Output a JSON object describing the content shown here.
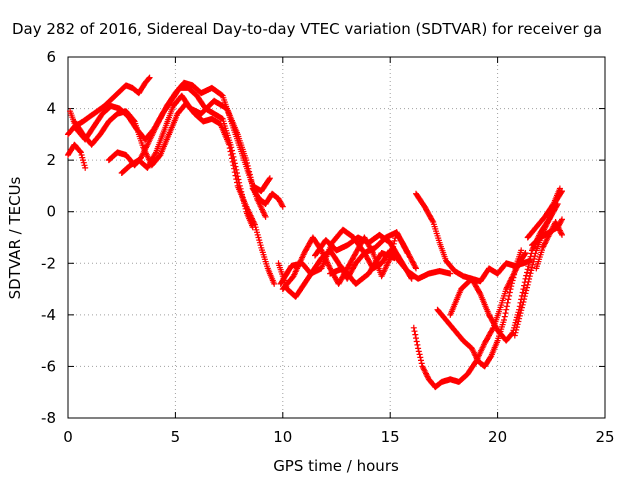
{
  "chart_data": {
    "type": "scatter",
    "title": "Day 282 of 2016, Sidereal Day-to-day VTEC variation (SDTVAR) for receiver ga",
    "xlabel": "GPS time / hours",
    "ylabel": "SDTVAR / TECUs",
    "xlim": [
      0,
      25
    ],
    "ylim": [
      -8,
      6
    ],
    "xticks": [
      0,
      5,
      10,
      15,
      20,
      25
    ],
    "yticks": [
      -8,
      -6,
      -4,
      -2,
      0,
      2,
      4,
      6
    ],
    "grid": true,
    "marker": "+",
    "color": "#ff0000",
    "traces": [
      [
        [
          0.0,
          3.0
        ],
        [
          0.3,
          3.3
        ],
        [
          0.7,
          3.5
        ],
        [
          1.2,
          3.8
        ],
        [
          1.7,
          4.1
        ],
        [
          2.2,
          4.5
        ],
        [
          2.7,
          4.9
        ],
        [
          3.0,
          4.8
        ],
        [
          3.3,
          4.6
        ],
        [
          3.6,
          5.0
        ],
        [
          3.8,
          5.2
        ]
      ],
      [
        [
          0.0,
          2.2
        ],
        [
          0.3,
          2.6
        ],
        [
          0.6,
          2.3
        ],
        [
          0.8,
          1.7
        ]
      ],
      [
        [
          0.1,
          3.9
        ],
        [
          0.4,
          3.2
        ],
        [
          0.8,
          2.8
        ],
        [
          1.2,
          3.3
        ],
        [
          1.6,
          3.8
        ],
        [
          2.0,
          4.1
        ],
        [
          2.4,
          4.0
        ],
        [
          2.8,
          3.7
        ],
        [
          3.2,
          3.2
        ],
        [
          3.6,
          2.8
        ],
        [
          4.0,
          3.2
        ],
        [
          4.4,
          3.8
        ],
        [
          4.8,
          4.3
        ],
        [
          5.2,
          4.8
        ],
        [
          5.6,
          4.8
        ],
        [
          6.0,
          4.5
        ],
        [
          6.4,
          4.0
        ],
        [
          6.8,
          3.8
        ],
        [
          7.2,
          3.6
        ],
        [
          7.6,
          2.5
        ],
        [
          8.0,
          1.0
        ],
        [
          8.3,
          0.0
        ],
        [
          8.6,
          -0.6
        ]
      ],
      [
        [
          0.3,
          3.5
        ],
        [
          0.7,
          3.0
        ],
        [
          1.1,
          2.6
        ],
        [
          1.5,
          3.0
        ],
        [
          1.9,
          3.5
        ],
        [
          2.3,
          3.8
        ],
        [
          2.7,
          3.9
        ],
        [
          3.1,
          3.5
        ],
        [
          3.5,
          2.5
        ],
        [
          3.9,
          1.8
        ],
        [
          4.3,
          2.2
        ],
        [
          4.7,
          3.0
        ],
        [
          5.1,
          3.8
        ],
        [
          5.5,
          4.2
        ],
        [
          5.9,
          3.8
        ],
        [
          6.3,
          3.5
        ],
        [
          6.7,
          3.6
        ],
        [
          7.1,
          3.4
        ],
        [
          7.5,
          2.6
        ],
        [
          7.9,
          1.0
        ],
        [
          8.3,
          0.2
        ],
        [
          8.7,
          -0.5
        ],
        [
          9.0,
          -1.4
        ],
        [
          9.3,
          -2.2
        ],
        [
          9.6,
          -2.8
        ]
      ],
      [
        [
          1.9,
          2.0
        ],
        [
          2.3,
          2.3
        ],
        [
          2.7,
          2.2
        ],
        [
          3.1,
          1.8
        ],
        [
          3.4,
          2.1
        ],
        [
          3.7,
          2.6
        ],
        [
          4.1,
          3.3
        ],
        [
          4.6,
          4.1
        ],
        [
          5.0,
          4.6
        ],
        [
          5.4,
          5.0
        ],
        [
          5.8,
          4.9
        ],
        [
          6.2,
          4.6
        ],
        [
          6.7,
          4.8
        ],
        [
          7.2,
          4.5
        ],
        [
          7.6,
          3.5
        ],
        [
          8.0,
          2.5
        ],
        [
          8.4,
          1.5
        ],
        [
          8.8,
          0.5
        ],
        [
          9.2,
          -0.2
        ]
      ],
      [
        [
          2.5,
          1.5
        ],
        [
          2.9,
          1.8
        ],
        [
          3.3,
          2.0
        ],
        [
          3.7,
          1.7
        ],
        [
          4.1,
          2.3
        ],
        [
          4.5,
          3.2
        ],
        [
          4.9,
          4.1
        ],
        [
          5.3,
          4.5
        ],
        [
          5.7,
          4.0
        ],
        [
          6.2,
          3.8
        ],
        [
          6.8,
          4.3
        ],
        [
          7.4,
          4.0
        ],
        [
          7.9,
          3.0
        ],
        [
          8.3,
          2.0
        ],
        [
          8.6,
          1.0
        ],
        [
          9.0,
          0.8
        ],
        [
          9.4,
          1.3
        ]
      ],
      [
        [
          8.6,
          0.9
        ],
        [
          8.9,
          0.5
        ],
        [
          9.2,
          0.3
        ],
        [
          9.5,
          0.7
        ],
        [
          9.8,
          0.5
        ],
        [
          10.0,
          0.2
        ]
      ],
      [
        [
          9.8,
          -2.0
        ],
        [
          10.2,
          -3.0
        ],
        [
          10.6,
          -3.3
        ],
        [
          11.0,
          -2.8
        ],
        [
          11.4,
          -2.3
        ],
        [
          11.8,
          -1.8
        ],
        [
          12.2,
          -1.5
        ],
        [
          12.6,
          -2.0
        ],
        [
          13.0,
          -2.6
        ],
        [
          13.4,
          -2.0
        ],
        [
          13.8,
          -1.6
        ],
        [
          14.2,
          -2.2
        ],
        [
          14.6,
          -2.0
        ],
        [
          15.0,
          -1.5
        ],
        [
          15.4,
          -1.9
        ],
        [
          15.8,
          -2.3
        ],
        [
          16.3,
          -2.6
        ],
        [
          16.8,
          -2.4
        ],
        [
          17.3,
          -2.3
        ],
        [
          17.8,
          -2.4
        ]
      ],
      [
        [
          10.0,
          -3.0
        ],
        [
          10.5,
          -2.5
        ],
        [
          11.0,
          -1.6
        ],
        [
          11.4,
          -1.0
        ],
        [
          11.8,
          -1.5
        ],
        [
          12.2,
          -2.2
        ],
        [
          12.6,
          -2.8
        ],
        [
          13.0,
          -2.2
        ],
        [
          13.4,
          -1.6
        ],
        [
          13.8,
          -1.0
        ],
        [
          14.2,
          -1.6
        ],
        [
          14.6,
          -2.5
        ],
        [
          15.0,
          -1.8
        ],
        [
          15.3,
          -0.8
        ],
        [
          15.7,
          -1.4
        ],
        [
          16.2,
          -2.2
        ]
      ],
      [
        [
          9.9,
          -2.8
        ],
        [
          10.4,
          -2.1
        ],
        [
          10.9,
          -2.0
        ],
        [
          11.3,
          -2.4
        ],
        [
          11.8,
          -2.2
        ],
        [
          12.3,
          -1.2
        ],
        [
          12.8,
          -0.7
        ],
        [
          13.3,
          -1.0
        ],
        [
          13.8,
          -1.6
        ],
        [
          14.3,
          -1.4
        ],
        [
          14.8,
          -1.0
        ],
        [
          15.3,
          -0.8
        ],
        [
          15.8,
          -1.6
        ]
      ],
      [
        [
          11.5,
          -1.7
        ],
        [
          12.0,
          -1.1
        ],
        [
          12.5,
          -1.5
        ],
        [
          13.0,
          -1.3
        ],
        [
          13.5,
          -1.0
        ],
        [
          14.0,
          -1.2
        ],
        [
          14.5,
          -0.9
        ],
        [
          15.0,
          -1.2
        ],
        [
          15.5,
          -1.9
        ],
        [
          16.0,
          -2.6
        ]
      ],
      [
        [
          12.2,
          -2.4
        ],
        [
          12.8,
          -2.2
        ],
        [
          13.4,
          -2.8
        ],
        [
          14.0,
          -2.4
        ],
        [
          14.6,
          -1.6
        ],
        [
          15.2,
          -1.8
        ]
      ],
      [
        [
          16.2,
          0.7
        ],
        [
          16.6,
          0.2
        ],
        [
          17.0,
          -0.4
        ],
        [
          17.3,
          -1.2
        ],
        [
          17.6,
          -1.9
        ],
        [
          18.0,
          -2.3
        ],
        [
          18.4,
          -2.5
        ],
        [
          18.8,
          -2.6
        ],
        [
          19.2,
          -2.7
        ],
        [
          19.6,
          -2.2
        ],
        [
          20.0,
          -2.4
        ],
        [
          20.4,
          -2.0
        ],
        [
          20.8,
          -2.1
        ],
        [
          21.2,
          -2.0
        ],
        [
          21.5,
          -1.9
        ]
      ],
      [
        [
          16.1,
          -4.5
        ],
        [
          16.3,
          -5.3
        ],
        [
          16.5,
          -6.0
        ],
        [
          16.8,
          -6.5
        ],
        [
          17.1,
          -6.8
        ],
        [
          17.4,
          -6.6
        ],
        [
          17.8,
          -6.5
        ],
        [
          18.2,
          -6.6
        ],
        [
          18.6,
          -6.3
        ],
        [
          19.0,
          -5.8
        ],
        [
          19.4,
          -5.1
        ],
        [
          19.8,
          -4.5
        ],
        [
          20.1,
          -3.8
        ],
        [
          20.4,
          -3.0
        ],
        [
          20.7,
          -2.5
        ],
        [
          21.0,
          -2.0
        ],
        [
          21.3,
          -1.6
        ]
      ],
      [
        [
          17.2,
          -3.8
        ],
        [
          17.6,
          -4.2
        ],
        [
          18.0,
          -4.6
        ],
        [
          18.4,
          -5.0
        ],
        [
          18.8,
          -5.3
        ],
        [
          19.1,
          -5.8
        ],
        [
          19.4,
          -6.0
        ],
        [
          19.7,
          -5.6
        ],
        [
          20.0,
          -5.0
        ],
        [
          20.3,
          -4.2
        ],
        [
          20.6,
          -3.0
        ],
        [
          20.9,
          -2.0
        ],
        [
          21.1,
          -1.5
        ]
      ],
      [
        [
          17.8,
          -4.0
        ],
        [
          18.3,
          -3.0
        ],
        [
          18.8,
          -2.6
        ],
        [
          19.2,
          -3.2
        ],
        [
          19.6,
          -4.0
        ],
        [
          20.0,
          -4.6
        ],
        [
          20.4,
          -5.0
        ],
        [
          20.7,
          -4.7
        ],
        [
          21.0,
          -3.8
        ],
        [
          21.3,
          -2.6
        ],
        [
          21.6,
          -1.5
        ],
        [
          22.0,
          -0.8
        ],
        [
          22.4,
          -0.3
        ],
        [
          22.8,
          0.3
        ]
      ],
      [
        [
          20.8,
          -4.8
        ],
        [
          21.2,
          -3.5
        ],
        [
          21.5,
          -2.5
        ],
        [
          21.8,
          -1.5
        ],
        [
          22.1,
          -0.8
        ],
        [
          22.4,
          -0.3
        ],
        [
          22.7,
          0.4
        ],
        [
          23.0,
          0.8
        ]
      ],
      [
        [
          21.4,
          -1.0
        ],
        [
          21.8,
          -0.6
        ],
        [
          22.2,
          -0.2
        ],
        [
          22.6,
          0.3
        ],
        [
          22.9,
          0.9
        ]
      ],
      [
        [
          21.8,
          -2.2
        ],
        [
          22.1,
          -1.4
        ],
        [
          22.4,
          -0.9
        ],
        [
          22.7,
          -0.4
        ],
        [
          23.0,
          -0.9
        ]
      ],
      [
        [
          21.6,
          -1.3
        ],
        [
          22.0,
          -1.0
        ],
        [
          22.4,
          -0.8
        ],
        [
          22.8,
          -0.6
        ],
        [
          23.0,
          -0.3
        ]
      ]
    ]
  }
}
